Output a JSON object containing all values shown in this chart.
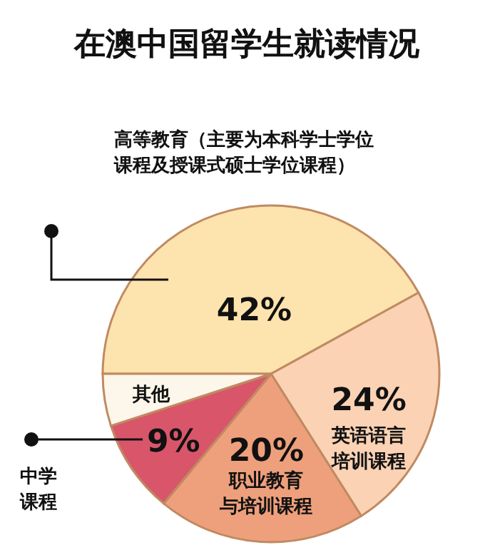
{
  "chart_data": {
    "type": "pie",
    "title": "在澳中国留学生就读情况",
    "categories": [
      "高等教育（主要为本科学士学位课程及授课式硕士学位课程）",
      "英语语言培训课程",
      "职业教育与培训课程",
      "中学课程",
      "其他"
    ],
    "values": [
      42,
      24,
      20,
      9,
      5
    ],
    "value_labels": [
      "42%",
      "24%",
      "20%",
      "9%",
      null
    ],
    "colors": [
      "#fde3ad",
      "#fbd2b4",
      "#eea07c",
      "#d9566a",
      "#fdf6ea"
    ]
  }
}
